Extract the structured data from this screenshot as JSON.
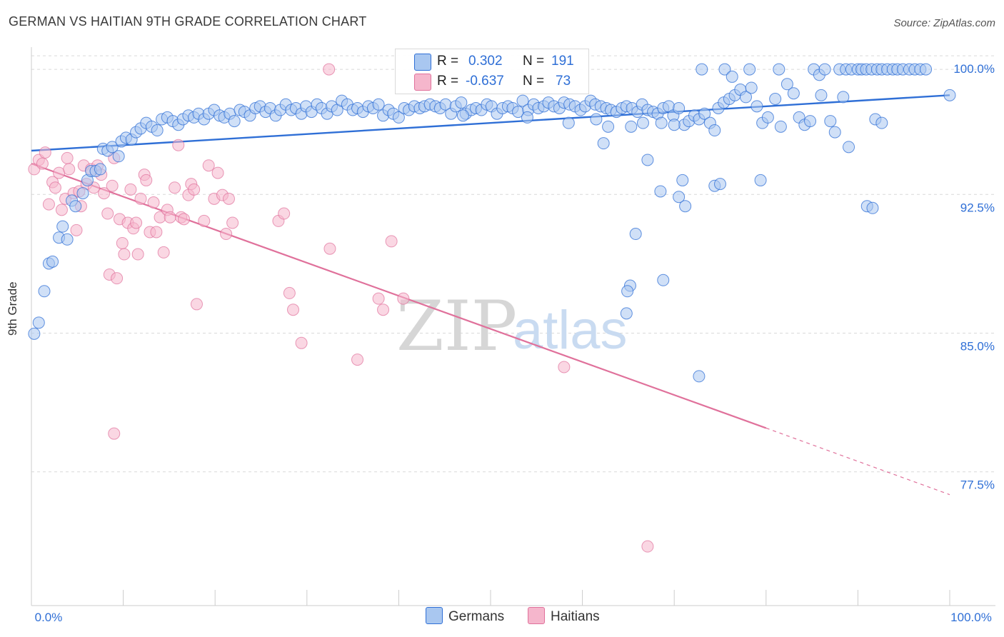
{
  "title": "GERMAN VS HAITIAN 9TH GRADE CORRELATION CHART",
  "source": "Source: ZipAtlas.com",
  "watermark": {
    "zip": "ZIP",
    "atlas": "atlas"
  },
  "colors": {
    "germans": "#2f6fd6",
    "germans_fill": "#a9c7f0",
    "haitians": "#e0719b",
    "haitians_fill": "#f5b6cc",
    "grid": "#d9d9d9",
    "tick_label": "#2f6fd6"
  },
  "legend": {
    "germans": {
      "r_label": "R =",
      "r_value": "0.302",
      "n_label": "N =",
      "n_value": "191"
    },
    "haitians": {
      "r_label": "R =",
      "r_value": "-0.637",
      "n_label": "N =",
      "n_value": "73"
    }
  },
  "series_labels": {
    "germans": "Germans",
    "haitians": "Haitians"
  },
  "chart_data": {
    "type": "scatter",
    "title": "GERMAN VS HAITIAN 9TH GRADE CORRELATION CHART",
    "xlabel": "",
    "ylabel": "9th Grade",
    "xlim": [
      0,
      100
    ],
    "ylim": [
      71.0,
      101.2
    ],
    "x_tick_labels": [
      "0.0%",
      "100.0%"
    ],
    "y_ticks": [
      100.0,
      92.5,
      85.0,
      77.5
    ],
    "y_tick_labels": [
      "100.0%",
      "92.5%",
      "85.0%",
      "77.5%"
    ],
    "grid": true,
    "legend_position": "top-center",
    "series": [
      {
        "name": "Germans",
        "color": "#2f6fd6",
        "trend": {
          "x": [
            0,
            100
          ],
          "y": [
            95.6,
            98.6
          ],
          "style": "solid"
        },
        "points": [
          [
            0.3,
            85.7
          ],
          [
            0.8,
            86.3
          ],
          [
            1.4,
            88.0
          ],
          [
            1.9,
            89.5
          ],
          [
            2.3,
            89.6
          ],
          [
            3.0,
            90.9
          ],
          [
            3.4,
            91.5
          ],
          [
            3.9,
            90.8
          ],
          [
            4.4,
            92.9
          ],
          [
            4.8,
            92.6
          ],
          [
            5.6,
            93.3
          ],
          [
            6.1,
            94.0
          ],
          [
            6.5,
            94.5
          ],
          [
            7.0,
            94.5
          ],
          [
            7.5,
            94.6
          ],
          [
            7.8,
            95.7
          ],
          [
            8.3,
            95.6
          ],
          [
            8.8,
            95.8
          ],
          [
            9.5,
            95.3
          ],
          [
            9.8,
            96.1
          ],
          [
            10.3,
            96.3
          ],
          [
            10.9,
            96.2
          ],
          [
            11.4,
            96.6
          ],
          [
            11.9,
            96.8
          ],
          [
            12.5,
            97.1
          ],
          [
            13.1,
            96.9
          ],
          [
            13.7,
            96.7
          ],
          [
            14.2,
            97.3
          ],
          [
            14.8,
            97.4
          ],
          [
            15.4,
            97.2
          ],
          [
            16.0,
            97.0
          ],
          [
            16.5,
            97.3
          ],
          [
            17.1,
            97.5
          ],
          [
            17.7,
            97.4
          ],
          [
            18.2,
            97.6
          ],
          [
            18.8,
            97.3
          ],
          [
            19.3,
            97.6
          ],
          [
            19.9,
            97.8
          ],
          [
            20.5,
            97.5
          ],
          [
            21.0,
            97.4
          ],
          [
            21.6,
            97.6
          ],
          [
            22.1,
            97.2
          ],
          [
            22.7,
            97.8
          ],
          [
            23.2,
            97.7
          ],
          [
            23.8,
            97.5
          ],
          [
            24.4,
            97.9
          ],
          [
            24.9,
            98.0
          ],
          [
            25.5,
            97.7
          ],
          [
            26.0,
            97.9
          ],
          [
            26.6,
            97.5
          ],
          [
            27.1,
            97.8
          ],
          [
            27.7,
            98.1
          ],
          [
            28.3,
            97.8
          ],
          [
            28.8,
            97.9
          ],
          [
            29.4,
            97.6
          ],
          [
            29.9,
            98.0
          ],
          [
            30.5,
            97.7
          ],
          [
            31.1,
            98.1
          ],
          [
            31.6,
            97.9
          ],
          [
            32.2,
            97.6
          ],
          [
            32.7,
            98.0
          ],
          [
            33.3,
            97.8
          ],
          [
            33.8,
            98.3
          ],
          [
            34.4,
            98.1
          ],
          [
            35.0,
            97.8
          ],
          [
            35.5,
            97.9
          ],
          [
            36.1,
            97.7
          ],
          [
            36.7,
            98.0
          ],
          [
            37.2,
            97.9
          ],
          [
            37.8,
            98.1
          ],
          [
            38.3,
            97.5
          ],
          [
            38.9,
            97.8
          ],
          [
            39.4,
            97.6
          ],
          [
            40.0,
            97.4
          ],
          [
            40.6,
            97.9
          ],
          [
            41.1,
            97.8
          ],
          [
            41.7,
            98.0
          ],
          [
            42.3,
            97.9
          ],
          [
            42.8,
            98.0
          ],
          [
            43.4,
            98.1
          ],
          [
            44.0,
            98.0
          ],
          [
            44.5,
            97.9
          ],
          [
            45.1,
            98.1
          ],
          [
            45.7,
            97.6
          ],
          [
            46.2,
            98.0
          ],
          [
            46.8,
            98.2
          ],
          [
            47.3,
            97.6
          ],
          [
            47.9,
            97.8
          ],
          [
            48.4,
            97.9
          ],
          [
            49.0,
            97.8
          ],
          [
            49.6,
            98.1
          ],
          [
            50.1,
            98.0
          ],
          [
            50.7,
            97.6
          ],
          [
            51.3,
            97.9
          ],
          [
            51.9,
            98.0
          ],
          [
            52.4,
            97.9
          ],
          [
            53.0,
            97.7
          ],
          [
            53.5,
            98.3
          ],
          [
            54.1,
            97.8
          ],
          [
            54.7,
            98.1
          ],
          [
            55.2,
            97.9
          ],
          [
            55.8,
            98.0
          ],
          [
            56.3,
            98.2
          ],
          [
            56.9,
            98.0
          ],
          [
            57.5,
            97.9
          ],
          [
            58.0,
            98.2
          ],
          [
            58.6,
            98.1
          ],
          [
            59.2,
            98.0
          ],
          [
            59.8,
            97.8
          ],
          [
            60.3,
            98.0
          ],
          [
            60.9,
            98.3
          ],
          [
            61.4,
            98.1
          ],
          [
            62.0,
            98.0
          ],
          [
            62.6,
            97.9
          ],
          [
            63.1,
            97.8
          ],
          [
            63.7,
            97.7
          ],
          [
            64.3,
            97.9
          ],
          [
            64.8,
            98.0
          ],
          [
            65.4,
            97.9
          ],
          [
            66.0,
            97.7
          ],
          [
            66.5,
            98.1
          ],
          [
            67.1,
            97.8
          ],
          [
            67.7,
            97.7
          ],
          [
            68.2,
            97.6
          ],
          [
            68.8,
            97.9
          ],
          [
            69.4,
            98.0
          ],
          [
            69.9,
            97.5
          ],
          [
            70.5,
            97.9
          ],
          [
            71.1,
            97.0
          ],
          [
            71.6,
            97.2
          ],
          [
            72.2,
            97.5
          ],
          [
            72.7,
            97.3
          ],
          [
            73.3,
            97.6
          ],
          [
            73.9,
            97.1
          ],
          [
            74.4,
            96.7
          ],
          [
            65.3,
            96.9
          ],
          [
            58.5,
            97.1
          ],
          [
            54.0,
            97.4
          ],
          [
            47.0,
            97.5
          ],
          [
            61.5,
            97.3
          ],
          [
            62.8,
            96.9
          ],
          [
            66.6,
            97.1
          ],
          [
            68.6,
            97.1
          ],
          [
            70.0,
            97.0
          ],
          [
            74.8,
            97.9
          ],
          [
            75.4,
            98.2
          ],
          [
            76.0,
            98.4
          ],
          [
            76.6,
            98.6
          ],
          [
            77.2,
            98.9
          ],
          [
            77.8,
            98.5
          ],
          [
            78.4,
            99.0
          ],
          [
            79.0,
            98.0
          ],
          [
            79.6,
            97.1
          ],
          [
            80.2,
            97.4
          ],
          [
            81.0,
            98.4
          ],
          [
            81.6,
            96.9
          ],
          [
            82.3,
            99.2
          ],
          [
            83.0,
            98.7
          ],
          [
            83.6,
            97.4
          ],
          [
            84.2,
            97.0
          ],
          [
            84.8,
            97.2
          ],
          [
            86.0,
            98.6
          ],
          [
            87.0,
            97.2
          ],
          [
            87.5,
            96.6
          ],
          [
            88.4,
            98.5
          ],
          [
            89.0,
            95.8
          ],
          [
            91.0,
            92.6
          ],
          [
            91.6,
            92.5
          ],
          [
            91.9,
            97.3
          ],
          [
            92.6,
            97.1
          ],
          [
            74.4,
            93.7
          ],
          [
            79.4,
            94.0
          ],
          [
            75.0,
            93.8
          ],
          [
            70.9,
            94.0
          ],
          [
            68.5,
            93.4
          ],
          [
            67.1,
            95.1
          ],
          [
            62.3,
            96.0
          ],
          [
            65.8,
            91.1
          ],
          [
            65.2,
            88.3
          ],
          [
            64.9,
            88.0
          ],
          [
            64.8,
            86.8
          ],
          [
            68.8,
            88.6
          ],
          [
            72.7,
            83.4
          ],
          [
            71.2,
            92.6
          ],
          [
            70.5,
            93.1
          ],
          [
            73.0,
            100.0
          ],
          [
            75.5,
            100.0
          ],
          [
            76.3,
            99.6
          ],
          [
            78.2,
            100.0
          ],
          [
            81.4,
            100.0
          ],
          [
            85.2,
            100.0
          ],
          [
            85.8,
            99.7
          ],
          [
            86.4,
            100.0
          ],
          [
            88.0,
            100.0
          ],
          [
            88.7,
            100.0
          ],
          [
            89.3,
            100.0
          ],
          [
            90.0,
            100.0
          ],
          [
            90.4,
            100.0
          ],
          [
            90.9,
            100.0
          ],
          [
            91.5,
            100.0
          ],
          [
            92.1,
            100.0
          ],
          [
            92.6,
            100.0
          ],
          [
            93.2,
            100.0
          ],
          [
            93.8,
            100.0
          ],
          [
            94.3,
            100.0
          ],
          [
            94.9,
            100.0
          ],
          [
            95.6,
            100.0
          ],
          [
            96.2,
            100.0
          ],
          [
            96.8,
            100.0
          ],
          [
            97.4,
            100.0
          ],
          [
            100.0,
            98.6
          ]
        ]
      },
      {
        "name": "Haitians",
        "color": "#e0719b",
        "trend": {
          "x": [
            0,
            80
          ],
          "y": [
            94.9,
            80.6
          ],
          "style": "solid"
        },
        "trend_extension": {
          "x": [
            80,
            100
          ],
          "y": [
            80.6,
            77.0
          ],
          "style": "dashed"
        },
        "points": [
          [
            0.3,
            94.6
          ],
          [
            0.8,
            95.1
          ],
          [
            1.2,
            94.9
          ],
          [
            1.5,
            95.5
          ],
          [
            1.9,
            92.7
          ],
          [
            2.3,
            93.9
          ],
          [
            2.6,
            93.6
          ],
          [
            3.0,
            94.4
          ],
          [
            3.3,
            92.4
          ],
          [
            3.7,
            93.0
          ],
          [
            3.9,
            95.2
          ],
          [
            4.1,
            94.6
          ],
          [
            4.6,
            93.3
          ],
          [
            4.9,
            91.3
          ],
          [
            5.2,
            93.4
          ],
          [
            5.4,
            92.6
          ],
          [
            5.7,
            94.8
          ],
          [
            6.0,
            93.8
          ],
          [
            6.5,
            94.6
          ],
          [
            6.8,
            93.6
          ],
          [
            7.2,
            94.8
          ],
          [
            7.6,
            94.3
          ],
          [
            7.9,
            93.3
          ],
          [
            8.3,
            92.2
          ],
          [
            8.5,
            88.9
          ],
          [
            8.8,
            93.7
          ],
          [
            9.0,
            95.2
          ],
          [
            9.3,
            88.7
          ],
          [
            9.6,
            91.9
          ],
          [
            9.9,
            90.6
          ],
          [
            10.1,
            90.0
          ],
          [
            10.5,
            91.7
          ],
          [
            10.8,
            93.5
          ],
          [
            11.1,
            91.4
          ],
          [
            11.4,
            91.7
          ],
          [
            11.6,
            90.0
          ],
          [
            11.9,
            93.0
          ],
          [
            12.3,
            94.3
          ],
          [
            12.5,
            94.0
          ],
          [
            12.9,
            91.2
          ],
          [
            13.3,
            92.8
          ],
          [
            13.6,
            91.2
          ],
          [
            14.0,
            92.0
          ],
          [
            14.4,
            90.1
          ],
          [
            14.8,
            92.4
          ],
          [
            15.1,
            92.0
          ],
          [
            15.6,
            93.6
          ],
          [
            16.0,
            95.9
          ],
          [
            16.3,
            92.0
          ],
          [
            16.6,
            91.9
          ],
          [
            17.1,
            93.2
          ],
          [
            17.4,
            93.8
          ],
          [
            17.7,
            93.5
          ],
          [
            18.0,
            87.3
          ],
          [
            18.8,
            91.8
          ],
          [
            19.3,
            94.8
          ],
          [
            19.9,
            93.0
          ],
          [
            20.3,
            94.4
          ],
          [
            20.8,
            93.2
          ],
          [
            21.2,
            91.1
          ],
          [
            21.5,
            93.0
          ],
          [
            21.9,
            91.7
          ],
          [
            9.0,
            80.3
          ],
          [
            26.9,
            91.8
          ],
          [
            27.5,
            92.2
          ],
          [
            28.1,
            87.9
          ],
          [
            28.5,
            87.0
          ],
          [
            29.4,
            85.2
          ],
          [
            32.5,
            90.3
          ],
          [
            35.5,
            84.3
          ],
          [
            37.8,
            87.6
          ],
          [
            38.3,
            87.0
          ],
          [
            39.2,
            90.7
          ],
          [
            40.5,
            87.6
          ],
          [
            58.0,
            83.9
          ],
          [
            67.1,
            74.2
          ],
          [
            32.4,
            100.0
          ]
        ]
      }
    ]
  }
}
